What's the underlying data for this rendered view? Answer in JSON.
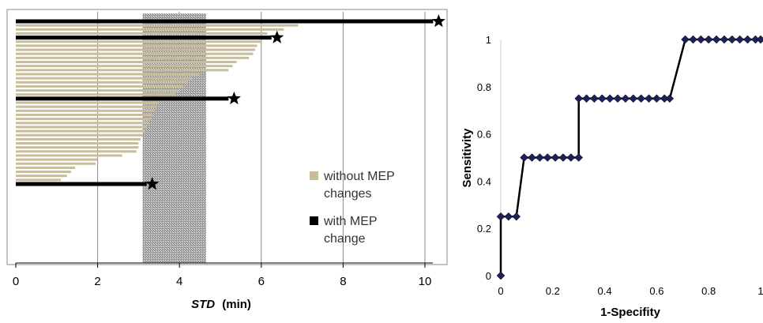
{
  "chart_data": [
    {
      "type": "bar",
      "orientation": "horizontal",
      "xlabel_italic": "STD",
      "xlabel_unit": "(min)",
      "ylabel": "",
      "xlim": [
        0,
        10
      ],
      "xticks": [
        "0",
        "2",
        "4",
        "6",
        "8",
        "10"
      ],
      "grid": true,
      "legend_position": "center-right",
      "shaded_band": [
        3.1,
        4.65
      ],
      "series": [
        {
          "name": "without MEP changes",
          "color": "#c8bd9a",
          "values": [
            6.9,
            6.55,
            6.15,
            6.0,
            5.9,
            5.85,
            5.8,
            5.7,
            5.4,
            5.3,
            5.2,
            4.5,
            4.3,
            4.2,
            4.1,
            4.0,
            3.9,
            3.5,
            3.45,
            3.4,
            3.35,
            3.3,
            3.25,
            3.2,
            3.15,
            3.1,
            3.05,
            3.0,
            3.0,
            2.95,
            2.6,
            2.0,
            1.95,
            1.45,
            1.35,
            1.25,
            1.1
          ]
        },
        {
          "name": "with MEP change",
          "color": "#000000",
          "marker": "star",
          "rows": [
            0,
            4,
            19,
            40
          ],
          "values": [
            10.2,
            6.25,
            5.2,
            3.2
          ]
        }
      ]
    },
    {
      "type": "line",
      "xlabel": "1-Specifity",
      "ylabel": "Sensitivity",
      "xlim": [
        0,
        1
      ],
      "ylim": [
        0,
        1
      ],
      "xticks": [
        "0",
        "0.2",
        "0.4",
        "0.6",
        "0.8",
        "1"
      ],
      "yticks": [
        "0",
        "0.2",
        "0.4",
        "0.6",
        "0.8",
        "1"
      ],
      "grid": false,
      "line_color": "#000000",
      "marker_color": "#1f1f5c",
      "marker": "diamond",
      "x": [
        0,
        0,
        0.03,
        0.06,
        0.09,
        0.12,
        0.15,
        0.18,
        0.21,
        0.24,
        0.27,
        0.3,
        0.3,
        0.33,
        0.36,
        0.39,
        0.42,
        0.45,
        0.48,
        0.51,
        0.54,
        0.57,
        0.6,
        0.63,
        0.65,
        0.71,
        0.74,
        0.77,
        0.8,
        0.83,
        0.86,
        0.89,
        0.92,
        0.95,
        0.98,
        1.0
      ],
      "y": [
        0,
        0.25,
        0.25,
        0.25,
        0.5,
        0.5,
        0.5,
        0.5,
        0.5,
        0.5,
        0.5,
        0.5,
        0.75,
        0.75,
        0.75,
        0.75,
        0.75,
        0.75,
        0.75,
        0.75,
        0.75,
        0.75,
        0.75,
        0.75,
        0.75,
        1,
        1,
        1,
        1,
        1,
        1,
        1,
        1,
        1,
        1,
        1
      ]
    }
  ]
}
